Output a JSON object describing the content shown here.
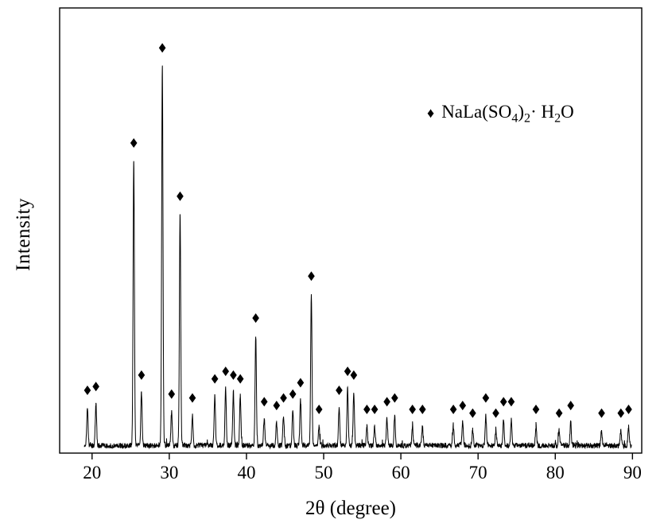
{
  "figure": {
    "background": "#ffffff",
    "line_color": "#000000",
    "marker_glyph": "♦"
  },
  "chart_data": {
    "type": "line",
    "title": "",
    "xlabel": "2θ (degree)",
    "ylabel": "Intensity",
    "xlim": [
      15.8,
      91.2
    ],
    "ylim": [
      0,
      117
    ],
    "x_ticks": [
      20,
      30,
      40,
      50,
      60,
      70,
      80,
      90
    ],
    "y_ticks": [],
    "grid": false,
    "marker_offset": 4.5,
    "legend": {
      "position": "upper-right",
      "marker": "filled-diamond",
      "label_plain": "NaLa(SO4)2· H2O",
      "label_parts": {
        "p1": "NaLa(SO",
        "s1": "4",
        "p2": ")",
        "s2": "2",
        "p3": "· H",
        "s3": "2",
        "p4": "O"
      }
    },
    "trace": {
      "start": 19.0,
      "end": 89.9,
      "baseline": 2,
      "noise": 0.7
    },
    "series": [
      {
        "name": "NaLa(SO4)2·H2O",
        "marker": "diamond",
        "color": "#000000",
        "peaks": [
          [
            19.4,
            10
          ],
          [
            20.5,
            11
          ],
          [
            25.4,
            75
          ],
          [
            26.4,
            14
          ],
          [
            29.1,
            100
          ],
          [
            30.3,
            9
          ],
          [
            31.4,
            61
          ],
          [
            33.0,
            8
          ],
          [
            35.9,
            13
          ],
          [
            37.3,
            15
          ],
          [
            38.3,
            14
          ],
          [
            39.2,
            13
          ],
          [
            41.2,
            29
          ],
          [
            42.3,
            7
          ],
          [
            43.9,
            6
          ],
          [
            44.8,
            8
          ],
          [
            46.0,
            9
          ],
          [
            47.0,
            12
          ],
          [
            48.4,
            40
          ],
          [
            49.4,
            5
          ],
          [
            52.0,
            10
          ],
          [
            53.1,
            15
          ],
          [
            53.9,
            14
          ],
          [
            55.6,
            5
          ],
          [
            56.6,
            5
          ],
          [
            58.2,
            7
          ],
          [
            59.2,
            8
          ],
          [
            61.5,
            5
          ],
          [
            62.8,
            5
          ],
          [
            66.8,
            5
          ],
          [
            68.0,
            6
          ],
          [
            69.3,
            4
          ],
          [
            71.0,
            8
          ],
          [
            72.3,
            4
          ],
          [
            73.3,
            7
          ],
          [
            74.3,
            7
          ],
          [
            77.5,
            5
          ],
          [
            80.5,
            4
          ],
          [
            82.0,
            6
          ],
          [
            86.0,
            4
          ],
          [
            88.5,
            4
          ],
          [
            89.5,
            5
          ]
        ]
      }
    ]
  }
}
